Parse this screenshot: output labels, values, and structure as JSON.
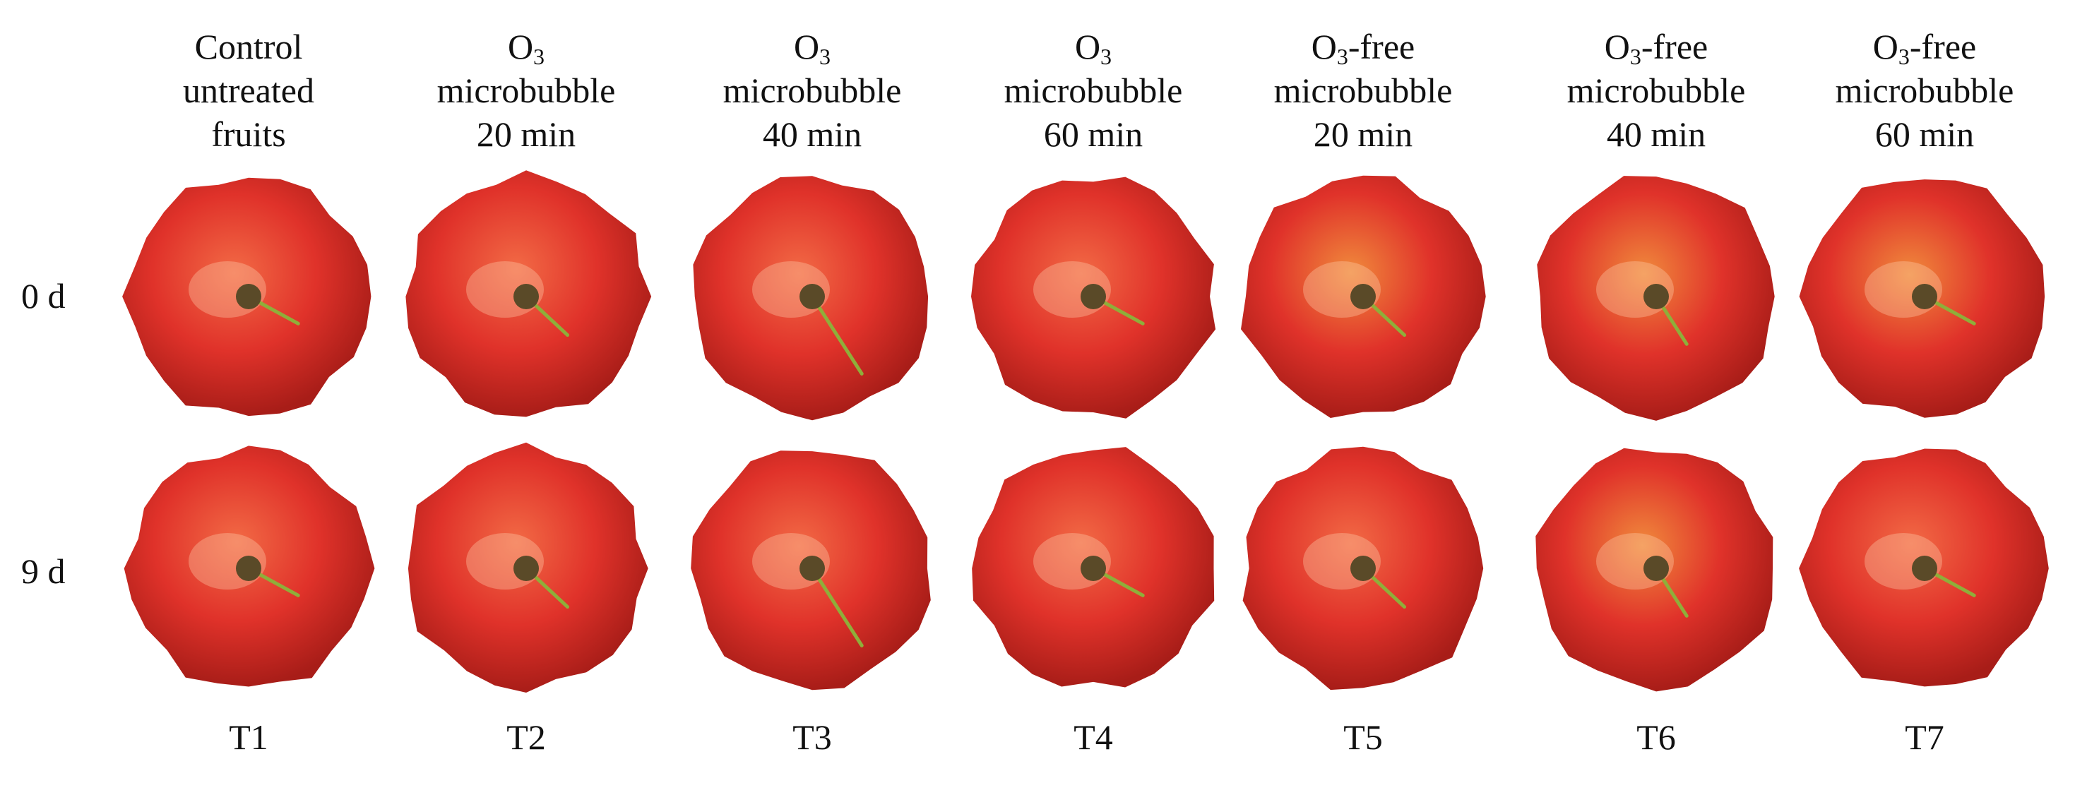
{
  "treatments": [
    {
      "code": "T1",
      "header": [
        "Control",
        "untreated",
        "fruits"
      ]
    },
    {
      "code": "T2",
      "header": [
        "O3",
        "microbubble",
        "20 min"
      ]
    },
    {
      "code": "T3",
      "header": [
        "O3",
        "microbubble",
        "40 min"
      ]
    },
    {
      "code": "T4",
      "header": [
        "O3",
        "microbubble",
        "60 min"
      ]
    },
    {
      "code": "T5",
      "header": [
        "O3-free",
        "microbubble",
        "20 min"
      ]
    },
    {
      "code": "T6",
      "header": [
        "O3-free",
        "microbubble",
        "40 min"
      ]
    },
    {
      "code": "T7",
      "header": [
        "O3-free",
        "microbubble",
        "60 min"
      ]
    }
  ],
  "rows": [
    {
      "label": "0 d"
    },
    {
      "label": "9 d"
    }
  ],
  "colors": {
    "fruit_red": "#e0322a",
    "fruit_dark": "#a81d18",
    "fruit_orange": "#f08a3c",
    "stem_green": "#8fae3a",
    "calyx_brown": "#5a4a28"
  }
}
